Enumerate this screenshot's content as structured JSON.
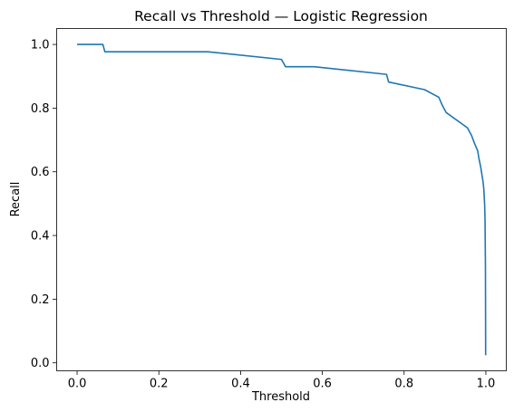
{
  "chart_data": {
    "type": "line",
    "title": "Recall vs Threshold — Logistic Regression",
    "xlabel": "Threshold",
    "ylabel": "Recall",
    "xlim": [
      -0.05,
      1.05
    ],
    "ylim": [
      -0.025,
      1.05
    ],
    "xticks": [
      0.0,
      0.2,
      0.4,
      0.6,
      0.8,
      1.0
    ],
    "xtick_labels": [
      "0.0",
      "0.2",
      "0.4",
      "0.6",
      "0.8",
      "1.0"
    ],
    "yticks": [
      0.0,
      0.2,
      0.4,
      0.6,
      0.8,
      1.0
    ],
    "ytick_labels": [
      "0.0",
      "0.2",
      "0.4",
      "0.6",
      "0.8",
      "1.0"
    ],
    "grid": false,
    "line_color": "#1f77b4",
    "series": [
      {
        "x": [
          0.0,
          0.063,
          0.068,
          0.32,
          0.5,
          0.51,
          0.58,
          0.757,
          0.762,
          0.85,
          0.885,
          0.893,
          0.903,
          0.955,
          0.965,
          0.972,
          0.98,
          0.983,
          0.987,
          0.99,
          0.993,
          0.995,
          0.997,
          0.998,
          0.999,
          0.9995
        ],
        "y": [
          1.0,
          1.0,
          0.977,
          0.977,
          0.953,
          0.93,
          0.93,
          0.906,
          0.882,
          0.858,
          0.834,
          0.81,
          0.786,
          0.738,
          0.714,
          0.69,
          0.666,
          0.642,
          0.618,
          0.594,
          0.57,
          0.546,
          0.498,
          0.45,
          0.3,
          0.024
        ]
      }
    ]
  }
}
